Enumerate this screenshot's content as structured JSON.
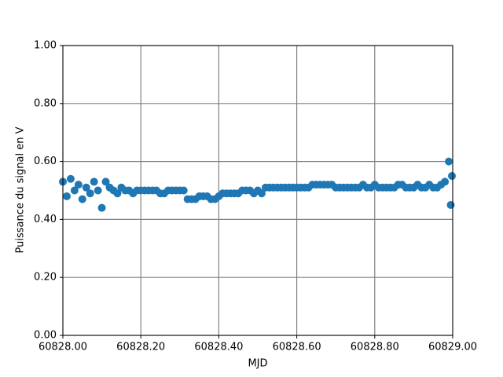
{
  "chart_data": {
    "type": "scatter",
    "x_label": "MJD",
    "y_label": "Puissance du signal en V",
    "x": [
      60828.0,
      60828.01,
      60828.02,
      60828.03,
      60828.04,
      60828.05,
      60828.06,
      60828.07,
      60828.08,
      60828.09,
      60828.1,
      60828.11,
      60828.12,
      60828.13,
      60828.14,
      60828.15,
      60828.16,
      60828.17,
      60828.18,
      60828.19,
      60828.2,
      60828.21,
      60828.22,
      60828.23,
      60828.24,
      60828.25,
      60828.26,
      60828.27,
      60828.28,
      60828.29,
      60828.3,
      60828.31,
      60828.32,
      60828.33,
      60828.34,
      60828.35,
      60828.36,
      60828.37,
      60828.38,
      60828.39,
      60828.4,
      60828.41,
      60828.42,
      60828.43,
      60828.44,
      60828.45,
      60828.46,
      60828.47,
      60828.48,
      60828.49,
      60828.5,
      60828.51,
      60828.52,
      60828.53,
      60828.54,
      60828.55,
      60828.56,
      60828.57,
      60828.58,
      60828.59,
      60828.6,
      60828.61,
      60828.62,
      60828.63,
      60828.64,
      60828.65,
      60828.66,
      60828.67,
      60828.68,
      60828.69,
      60828.7,
      60828.71,
      60828.72,
      60828.73,
      60828.74,
      60828.75,
      60828.76,
      60828.77,
      60828.78,
      60828.79,
      60828.8,
      60828.81,
      60828.82,
      60828.83,
      60828.84,
      60828.85,
      60828.86,
      60828.87,
      60828.88,
      60828.89,
      60828.9,
      60828.91,
      60828.92,
      60828.93,
      60828.94,
      60828.95,
      60828.96,
      60828.97,
      60828.98,
      60828.99,
      60828.995,
      60828.998
    ],
    "values": [
      0.53,
      0.48,
      0.54,
      0.5,
      0.52,
      0.47,
      0.51,
      0.49,
      0.53,
      0.5,
      0.44,
      0.53,
      0.51,
      0.5,
      0.49,
      0.51,
      0.5,
      0.5,
      0.49,
      0.5,
      0.5,
      0.5,
      0.5,
      0.5,
      0.5,
      0.49,
      0.49,
      0.5,
      0.5,
      0.5,
      0.5,
      0.5,
      0.47,
      0.47,
      0.47,
      0.48,
      0.48,
      0.48,
      0.47,
      0.47,
      0.48,
      0.49,
      0.49,
      0.49,
      0.49,
      0.49,
      0.5,
      0.5,
      0.5,
      0.49,
      0.5,
      0.49,
      0.51,
      0.51,
      0.51,
      0.51,
      0.51,
      0.51,
      0.51,
      0.51,
      0.51,
      0.51,
      0.51,
      0.51,
      0.52,
      0.52,
      0.52,
      0.52,
      0.52,
      0.52,
      0.51,
      0.51,
      0.51,
      0.51,
      0.51,
      0.51,
      0.51,
      0.52,
      0.51,
      0.51,
      0.52,
      0.51,
      0.51,
      0.51,
      0.51,
      0.51,
      0.52,
      0.52,
      0.51,
      0.51,
      0.51,
      0.52,
      0.51,
      0.51,
      0.52,
      0.51,
      0.51,
      0.52,
      0.53,
      0.6,
      0.45,
      0.55
    ],
    "color": "#1f77b4",
    "xlim": [
      60828.0,
      60829.0
    ],
    "xticks": [
      {
        "value": 60828.0,
        "label": "60828.00"
      },
      {
        "value": 60828.2,
        "label": "60828.20"
      },
      {
        "value": 60828.4,
        "label": "60828.40"
      },
      {
        "value": 60828.6,
        "label": "60828.60"
      },
      {
        "value": 60828.8,
        "label": "60828.80"
      },
      {
        "value": 60829.0,
        "label": "60829.00"
      }
    ],
    "ylim": [
      0,
      1
    ],
    "yticks": [
      {
        "value": 0,
        "label": "0.00"
      },
      {
        "value": 0.2,
        "label": "0.20"
      },
      {
        "value": 0.4,
        "label": "0.40"
      },
      {
        "value": 0.6,
        "label": "0.60"
      },
      {
        "value": 0.8,
        "label": "0.80"
      },
      {
        "value": 1,
        "label": "1.00"
      }
    ],
    "grid": true
  }
}
